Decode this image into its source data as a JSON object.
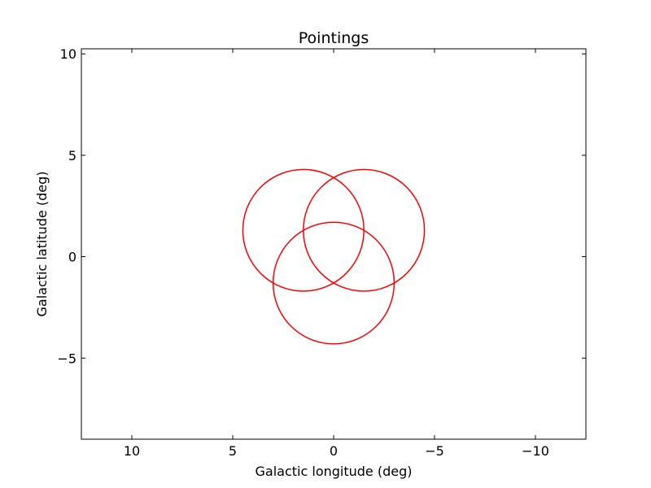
{
  "chart_data": {
    "type": "scatter",
    "title": "Pointings",
    "xlabel": "Galactic longitude (deg)",
    "ylabel": "Galactic latitude (deg)",
    "xlim": [
      12.5,
      -12.5
    ],
    "ylim": [
      -9,
      10.25
    ],
    "xticks": [
      10,
      5,
      0,
      -5,
      -10
    ],
    "xtick_labels": [
      "10",
      "5",
      "0",
      "−5",
      "−10"
    ],
    "yticks": [
      10,
      5,
      0,
      -5
    ],
    "ytick_labels": [
      "10",
      "5",
      "0",
      "−5"
    ],
    "grid": false,
    "series": [
      {
        "shape": "circle",
        "color": "#ff0000",
        "pointings": [
          {
            "l": 1.5,
            "b": 1.3,
            "radius": 3.0
          },
          {
            "l": -1.5,
            "b": 1.3,
            "radius": 3.0
          },
          {
            "l": 0.0,
            "b": -1.3,
            "radius": 3.0
          }
        ]
      }
    ]
  }
}
